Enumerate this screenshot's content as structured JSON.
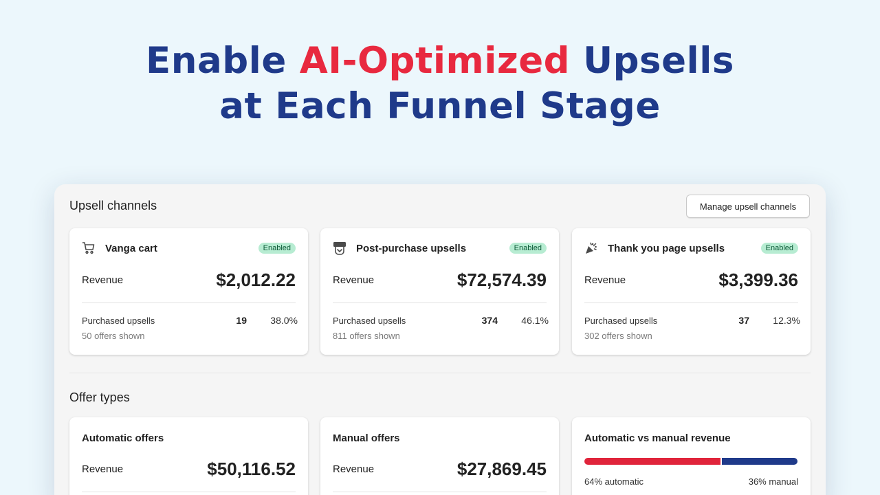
{
  "hero": {
    "line1_pre": "Enable ",
    "line1_accent": "AI-Optimized",
    "line1_post": " Upsells",
    "line2": "at Each Funnel Stage"
  },
  "colors": {
    "accent_red": "#e8293f",
    "brand_navy": "#1f3a8a",
    "enabled_badge": "#b7ecd2"
  },
  "channels": {
    "title": "Upsell channels",
    "manage_label": "Manage upsell channels",
    "cards": [
      {
        "icon": "cart-icon",
        "name": "Vanga cart",
        "status": "Enabled",
        "revenue_label": "Revenue",
        "revenue": "$2,012.22",
        "purchased_label": "Purchased upsells",
        "purchased_count": "19",
        "purchased_pct": "38.0%",
        "offers_shown": "50 offers shown"
      },
      {
        "icon": "package-icon",
        "name": "Post-purchase upsells",
        "status": "Enabled",
        "revenue_label": "Revenue",
        "revenue": "$72,574.39",
        "purchased_label": "Purchased upsells",
        "purchased_count": "374",
        "purchased_pct": "46.1%",
        "offers_shown": "811 offers shown"
      },
      {
        "icon": "party-popper-icon",
        "name": "Thank you page upsells",
        "status": "Enabled",
        "revenue_label": "Revenue",
        "revenue": "$3,399.36",
        "purchased_label": "Purchased upsells",
        "purchased_count": "37",
        "purchased_pct": "12.3%",
        "offers_shown": "302 offers shown"
      }
    ]
  },
  "offers": {
    "title": "Offer types",
    "automatic": {
      "name": "Automatic offers",
      "revenue_label": "Revenue",
      "revenue": "$50,116.52"
    },
    "manual": {
      "name": "Manual offers",
      "revenue_label": "Revenue",
      "revenue": "$27,869.45"
    },
    "split": {
      "name": "Automatic vs manual revenue",
      "automatic_fraction": 0.64,
      "automatic_label": "64% automatic",
      "manual_label": "36% manual"
    }
  }
}
